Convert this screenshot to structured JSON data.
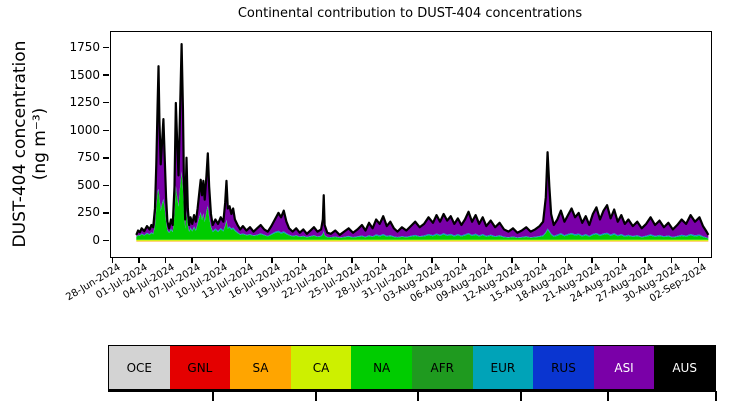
{
  "figure": {
    "title": "Continental contribution to DUST-404 concentrations",
    "ylabel_line1": "DUST-404 concentration",
    "ylabel_line2": "(ng m⁻³)"
  },
  "legend": {
    "items": [
      {
        "label": "OCE",
        "color": "#d3d3d3",
        "text_color": "#000000"
      },
      {
        "label": "GNL",
        "color": "#e40000",
        "text_color": "#000000"
      },
      {
        "label": "SA",
        "color": "#ffa500",
        "text_color": "#000000"
      },
      {
        "label": "CA",
        "color": "#cdf000",
        "text_color": "#000000"
      },
      {
        "label": "NA",
        "color": "#00cc00",
        "text_color": "#000000"
      },
      {
        "label": "AFR",
        "color": "#1f9a1f",
        "text_color": "#000000"
      },
      {
        "label": "EUR",
        "color": "#00a3b8",
        "text_color": "#000000"
      },
      {
        "label": "RUS",
        "color": "#0a35d0",
        "text_color": "#000000"
      },
      {
        "label": "ASI",
        "color": "#7a00a8",
        "text_color": "#ffffff"
      },
      {
        "label": "AUS",
        "color": "#000000",
        "text_color": "#ffffff"
      }
    ]
  },
  "chart_data": {
    "type": "area",
    "title": "Continental contribution to DUST-404 concentrations",
    "xlabel": "",
    "ylabel": "DUST-404 concentration (ng m⁻³)",
    "ylim": [
      -140,
      1900
    ],
    "yticks": [
      0,
      250,
      500,
      750,
      1000,
      1250,
      1500,
      1750
    ],
    "xlim_days": [
      -0.25,
      67.3
    ],
    "x_epoch": "28-Jun-2024",
    "xtick_days": [
      0,
      3,
      6,
      9,
      12,
      15,
      18,
      21,
      24,
      27,
      30,
      33,
      36,
      39,
      42,
      45,
      48,
      51,
      54,
      57,
      60,
      63,
      66
    ],
    "xtick_labels": [
      "28-Jun-2024",
      "01-Jul-2024",
      "04-Jul-2024",
      "07-Jul-2024",
      "10-Jul-2024",
      "13-Jul-2024",
      "16-Jul-2024",
      "19-Jul-2024",
      "22-Jul-2024",
      "25-Jul-2024",
      "28-Jul-2024",
      "31-Jul-2024",
      "03-Aug-2024",
      "06-Aug-2024",
      "09-Aug-2024",
      "12-Aug-2024",
      "15-Aug-2024",
      "18-Aug-2024",
      "21-Aug-2024",
      "24-Aug-2024",
      "27-Aug-2024",
      "30-Aug-2024",
      "02-Sep-2024"
    ],
    "legend_position": "bottom",
    "grid": false,
    "stack_order": [
      "OCE",
      "GNL",
      "SA",
      "CA",
      "NA",
      "AFR",
      "EUR",
      "RUS",
      "ASI",
      "AUS"
    ],
    "total_line_color": "#000000",
    "thin_layer_max": {
      "SA": 6,
      "CA": 10,
      "EUR": 12
    },
    "days": [
      2.6,
      2.8,
      3.0,
      3.2,
      3.5,
      3.8,
      4.1,
      4.3,
      4.5,
      4.7,
      4.85,
      5.0,
      5.1,
      5.2,
      5.35,
      5.5,
      5.65,
      5.8,
      5.95,
      6.1,
      6.3,
      6.5,
      6.7,
      6.9,
      7.05,
      7.2,
      7.35,
      7.5,
      7.7,
      7.85,
      7.95,
      8.1,
      8.25,
      8.4,
      8.55,
      8.7,
      8.9,
      9.1,
      9.3,
      9.5,
      9.7,
      9.85,
      10.0,
      10.15,
      10.3,
      10.5,
      10.65,
      10.8,
      11.0,
      11.2,
      11.5,
      11.8,
      12.1,
      12.4,
      12.6,
      12.75,
      12.9,
      13.1,
      13.3,
      13.5,
      13.7,
      14.0,
      14.3,
      14.6,
      15.0,
      15.4,
      15.8,
      16.2,
      16.6,
      17.0,
      17.4,
      17.8,
      18.2,
      18.6,
      18.9,
      19.2,
      19.5,
      19.8,
      20.2,
      20.6,
      21.0,
      21.4,
      21.8,
      22.2,
      22.6,
      23.0,
      23.4,
      23.6,
      23.7,
      23.8,
      24.1,
      24.5,
      25.0,
      25.5,
      26.0,
      26.5,
      27.0,
      27.5,
      28.0,
      28.4,
      28.8,
      29.2,
      29.6,
      30.0,
      30.4,
      30.8,
      31.2,
      31.6,
      32.0,
      32.5,
      33.0,
      33.5,
      34.0,
      34.5,
      35.0,
      35.5,
      36.0,
      36.4,
      36.8,
      37.2,
      37.6,
      38.0,
      38.4,
      38.8,
      39.2,
      39.6,
      40.0,
      40.4,
      40.8,
      41.2,
      41.6,
      42.0,
      42.5,
      43.0,
      43.5,
      44.0,
      44.5,
      45.0,
      45.5,
      46.0,
      46.5,
      47.0,
      47.5,
      48.0,
      48.4,
      48.7,
      48.9,
      49.1,
      49.3,
      49.6,
      50.0,
      50.4,
      50.8,
      51.2,
      51.6,
      52.0,
      52.4,
      52.8,
      53.2,
      53.6,
      54.0,
      54.4,
      54.8,
      55.2,
      55.6,
      56.0,
      56.4,
      56.8,
      57.2,
      57.6,
      58.0,
      58.5,
      59.0,
      59.5,
      60.0,
      60.5,
      61.0,
      61.5,
      62.0,
      62.5,
      63.0,
      63.5,
      64.0,
      64.5,
      65.0,
      65.5,
      66.0,
      66.4,
      66.8,
      67.0
    ],
    "total": [
      60,
      100,
      85,
      120,
      95,
      140,
      110,
      150,
      130,
      300,
      700,
      1250,
      1590,
      1100,
      700,
      900,
      1110,
      750,
      400,
      180,
      120,
      200,
      150,
      500,
      1257,
      900,
      600,
      1100,
      1790,
      1200,
      600,
      200,
      760,
      300,
      150,
      220,
      160,
      240,
      180,
      300,
      450,
      560,
      420,
      550,
      380,
      600,
      800,
      500,
      250,
      150,
      200,
      160,
      220,
      180,
      350,
      550,
      300,
      320,
      250,
      300,
      200,
      150,
      110,
      140,
      100,
      130,
      90,
      120,
      150,
      110,
      90,
      140,
      200,
      260,
      220,
      280,
      180,
      120,
      90,
      120,
      80,
      110,
      70,
      100,
      130,
      90,
      110,
      200,
      420,
      150,
      80,
      70,
      100,
      60,
      90,
      120,
      80,
      110,
      150,
      100,
      170,
      120,
      200,
      160,
      230,
      140,
      180,
      120,
      90,
      130,
      100,
      140,
      180,
      130,
      160,
      220,
      170,
      240,
      180,
      250,
      190,
      230,
      160,
      210,
      150,
      200,
      270,
      180,
      240,
      160,
      220,
      140,
      190,
      130,
      170,
      110,
      90,
      120,
      80,
      100,
      130,
      90,
      110,
      140,
      180,
      400,
      810,
      500,
      250,
      150,
      200,
      280,
      180,
      240,
      300,
      220,
      260,
      170,
      230,
      150,
      250,
      310,
      200,
      280,
      330,
      210,
      290,
      180,
      240,
      160,
      200,
      140,
      180,
      120,
      160,
      220,
      150,
      190,
      130,
      170,
      110,
      150,
      200,
      160,
      240,
      180,
      220,
      140,
      90,
      60
    ],
    "na": [
      25,
      40,
      35,
      50,
      38,
      55,
      45,
      60,
      50,
      120,
      280,
      430,
      450,
      380,
      260,
      320,
      360,
      280,
      160,
      80,
      60,
      90,
      70,
      220,
      480,
      380,
      300,
      450,
      610,
      450,
      280,
      100,
      250,
      130,
      70,
      100,
      75,
      110,
      80,
      140,
      200,
      240,
      180,
      230,
      160,
      250,
      300,
      200,
      110,
      70,
      90,
      70,
      95,
      75,
      120,
      170,
      100,
      110,
      90,
      100,
      80,
      60,
      45,
      50,
      40,
      45,
      35,
      40,
      50,
      40,
      30,
      45,
      60,
      70,
      55,
      65,
      50,
      40,
      30,
      35,
      25,
      30,
      22,
      28,
      35,
      25,
      30,
      45,
      70,
      35,
      22,
      20,
      25,
      18,
      22,
      28,
      20,
      25,
      30,
      22,
      32,
      25,
      38,
      30,
      40,
      28,
      32,
      24,
      20,
      26,
      22,
      28,
      34,
      26,
      30,
      40,
      32,
      45,
      35,
      48,
      36,
      42,
      30,
      40,
      30,
      38,
      50,
      34,
      44,
      30,
      40,
      28,
      35,
      25,
      32,
      22,
      18,
      24,
      16,
      20,
      25,
      18,
      22,
      26,
      32,
      60,
      90,
      70,
      45,
      28,
      36,
      48,
      32,
      42,
      50,
      38,
      45,
      30,
      40,
      28,
      42,
      50,
      35,
      46,
      52,
      36,
      48,
      32,
      40,
      28,
      34,
      26,
      32,
      22,
      28,
      38,
      26,
      33,
      24,
      30,
      20,
      26,
      34,
      28,
      40,
      30,
      36,
      24,
      16,
      12
    ]
  }
}
